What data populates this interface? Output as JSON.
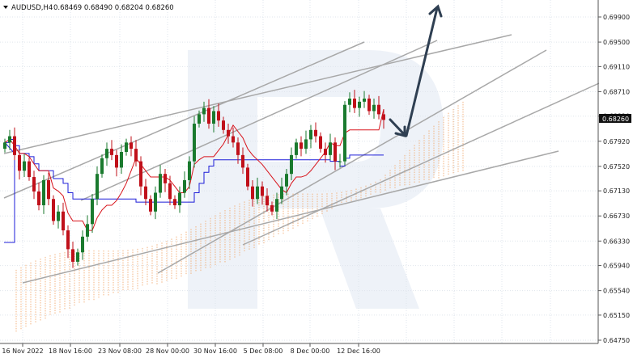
{
  "header": {
    "symbol_timeframe": "AUDUSD,H4",
    "ohlc": "0.68469 0.68490 0.68204 0.68260"
  },
  "current_price_label": "0.68260",
  "colors": {
    "bull_candle": "#1a7a2e",
    "bear_candle": "#c0101a",
    "kijun": "#1c1cd8",
    "tenkan": "#d8131b",
    "cloud": "#f0a060",
    "trendlines": "#a8a8a8",
    "forecast_arrow": "#2f3f52",
    "watermark": "#eef2f8",
    "grid": "#dfe5ec",
    "price_box": "#111111"
  },
  "chart_data": {
    "type": "candlestick",
    "title": "AUDUSD,H4",
    "y_axis_ticks": [
      "0.69900",
      "0.69500",
      "0.69110",
      "0.68710",
      "0.68320",
      "0.67920",
      "0.67520",
      "0.67130",
      "0.66730",
      "0.66330",
      "0.65940",
      "0.65540",
      "0.65150",
      "0.64750"
    ],
    "x_axis_ticks": [
      "16 Nov 2022",
      "18 Nov 16:00",
      "23 Nov 08:00",
      "28 Nov 00:00",
      "30 Nov 16:00",
      "5 Dec 08:00",
      "8 Dec 00:00",
      "12 Dec 16:00"
    ],
    "ylim": [
      0.646,
      0.7
    ],
    "last_price": 0.6826,
    "icons": [
      "header-triangle-icon",
      "watermark-logo-icon"
    ]
  }
}
